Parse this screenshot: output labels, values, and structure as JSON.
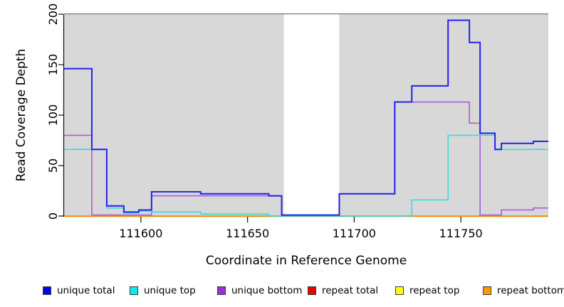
{
  "chart_data": {
    "type": "line",
    "line_style": "step",
    "title": "",
    "xlabel": "Coordinate in Reference Genome",
    "ylabel": "Read Coverage Depth",
    "xlim": [
      111564,
      111791
    ],
    "ylim": [
      0,
      200
    ],
    "x_ticks": [
      111600,
      111650,
      111700,
      111750
    ],
    "y_ticks": [
      0,
      50,
      100,
      150,
      200
    ],
    "grid": false,
    "legend_position": "bottom",
    "plot_background_color": "#d8d8d8",
    "no_data_band": {
      "x_start": 111667,
      "x_end": 111693,
      "color": "#ffffff"
    },
    "series": [
      {
        "name": "repeat total",
        "color": "#dd2222",
        "line_width": 1.6,
        "points": [
          [
            111564,
            0
          ]
        ]
      },
      {
        "name": "repeat top",
        "color": "#ffff00",
        "line_width": 1.6,
        "points": [
          [
            111564,
            0
          ]
        ]
      },
      {
        "name": "repeat bottom",
        "color": "#ff9400",
        "line_width": 1.8,
        "points": [
          [
            111564,
            0
          ]
        ]
      },
      {
        "name": "unique bottom",
        "color": "#a55fd5",
        "line_width": 1.6,
        "points": [
          [
            111564,
            80
          ],
          [
            111577,
            1
          ],
          [
            111605,
            20
          ],
          [
            111666,
            1
          ],
          [
            111693,
            22
          ],
          [
            111719,
            113
          ],
          [
            111754,
            92
          ],
          [
            111759,
            1
          ],
          [
            111769,
            6
          ],
          [
            111784,
            8
          ]
        ]
      },
      {
        "name": "unique top",
        "color": "#33dddd",
        "line_width": 1.6,
        "points": [
          [
            111564,
            66
          ],
          [
            111584,
            8
          ],
          [
            111592,
            3
          ],
          [
            111599,
            5
          ],
          [
            111605,
            4
          ],
          [
            111628,
            2
          ],
          [
            111660,
            0
          ],
          [
            111727,
            16
          ],
          [
            111744,
            80
          ],
          [
            111766,
            66
          ]
        ]
      },
      {
        "name": "unique total",
        "color": "#2222ee",
        "line_width": 2,
        "points": [
          [
            111564,
            146
          ],
          [
            111577,
            66
          ],
          [
            111584,
            10
          ],
          [
            111592,
            4
          ],
          [
            111599,
            6
          ],
          [
            111605,
            24
          ],
          [
            111628,
            22
          ],
          [
            111660,
            20
          ],
          [
            111666,
            1
          ],
          [
            111693,
            22
          ],
          [
            111719,
            113
          ],
          [
            111727,
            129
          ],
          [
            111744,
            194
          ],
          [
            111754,
            172
          ],
          [
            111759,
            82
          ],
          [
            111766,
            66
          ],
          [
            111769,
            72
          ],
          [
            111784,
            74
          ]
        ]
      }
    ],
    "legend": [
      {
        "label": "unique total",
        "color": "#0000ee"
      },
      {
        "label": "unique top",
        "color": "#00eeee"
      },
      {
        "label": "unique bottom",
        "color": "#9932cc"
      },
      {
        "label": "repeat total",
        "color": "#ee0000"
      },
      {
        "label": "repeat top",
        "color": "#ffff00"
      },
      {
        "label": "repeat bottom",
        "color": "#ff9800"
      }
    ]
  }
}
